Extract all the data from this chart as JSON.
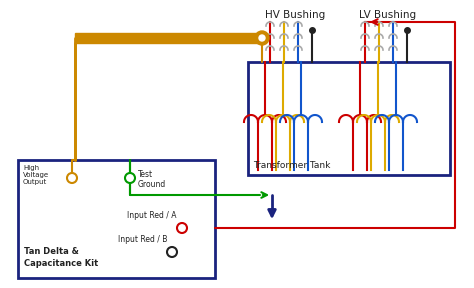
{
  "bg_color": "#ffffff",
  "hv_bushing_label": "HV Bushing",
  "lv_bushing_label": "LV Bushing",
  "transformer_tank_label": "Transformer Tank",
  "kit_label1": "Tan Delta &",
  "kit_label2": "Capacitance Kit",
  "hv_output_label": "High\nVoltage\nOutput",
  "test_ground_label": "Test\nGround",
  "input_a_label": "Input Red / A",
  "input_b_label": "Input Red / B",
  "color_orange": "#cc8800",
  "color_red": "#cc0000",
  "color_green": "#009900",
  "color_blue": "#1155cc",
  "color_dark_blue": "#1a237e",
  "color_yellow": "#ddaa00",
  "color_gray": "#aaaaaa",
  "color_black": "#222222"
}
